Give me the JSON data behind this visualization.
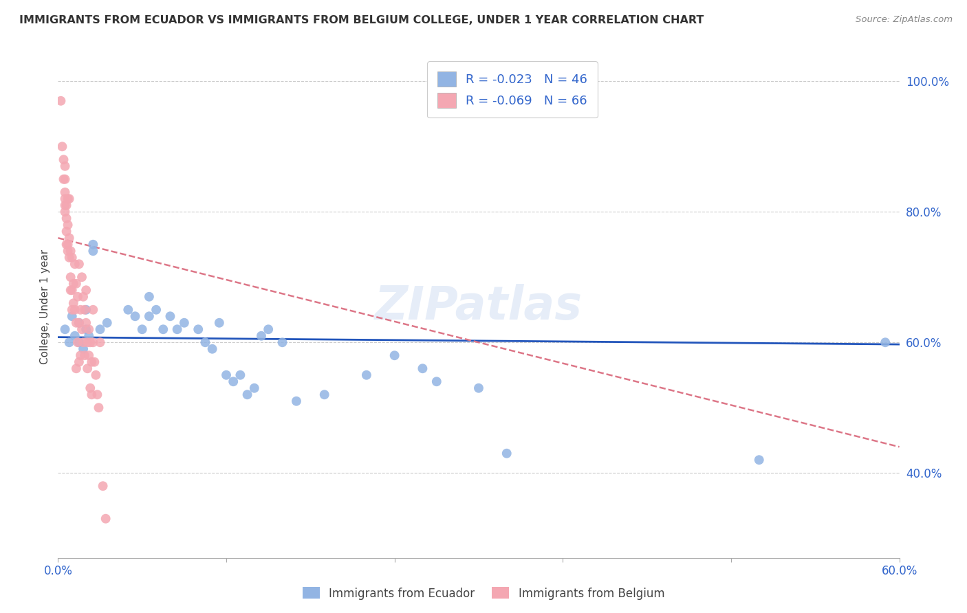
{
  "title": "IMMIGRANTS FROM ECUADOR VS IMMIGRANTS FROM BELGIUM COLLEGE, UNDER 1 YEAR CORRELATION CHART",
  "source": "Source: ZipAtlas.com",
  "ylabel": "College, Under 1 year",
  "xlim": [
    0.0,
    0.6
  ],
  "ylim": [
    0.27,
    1.04
  ],
  "xticks": [
    0.0,
    0.12,
    0.24,
    0.36,
    0.48,
    0.6
  ],
  "xticklabels": [
    "0.0%",
    "",
    "",
    "",
    "",
    "60.0%"
  ],
  "yticks": [
    0.4,
    0.6,
    0.8,
    1.0
  ],
  "yticklabels": [
    "40.0%",
    "60.0%",
    "80.0%",
    "100.0%"
  ],
  "legend_line1": "R = -0.023   N = 46",
  "legend_line2": "R = -0.069   N = 66",
  "legend_label1": "Immigrants from Ecuador",
  "legend_label2": "Immigrants from Belgium",
  "color_ecuador": "#92b4e3",
  "color_belgium": "#f4a7b2",
  "color_line_ecuador": "#2255bb",
  "color_line_belgium": "#dd7788",
  "watermark": "ZIPatlas",
  "ec_line_x0": 0.0,
  "ec_line_y0": 0.608,
  "ec_line_x1": 0.6,
  "ec_line_y1": 0.597,
  "be_line_x0": 0.0,
  "be_line_y0": 0.76,
  "be_line_x1": 0.6,
  "be_line_y1": 0.44,
  "ecuador_x": [
    0.005,
    0.008,
    0.01,
    0.012,
    0.015,
    0.015,
    0.018,
    0.02,
    0.02,
    0.022,
    0.025,
    0.025,
    0.03,
    0.035,
    0.05,
    0.055,
    0.06,
    0.065,
    0.065,
    0.07,
    0.075,
    0.08,
    0.085,
    0.09,
    0.1,
    0.105,
    0.11,
    0.115,
    0.12,
    0.125,
    0.13,
    0.135,
    0.14,
    0.145,
    0.15,
    0.16,
    0.17,
    0.19,
    0.22,
    0.24,
    0.26,
    0.27,
    0.3,
    0.32,
    0.5,
    0.59
  ],
  "ecuador_y": [
    0.62,
    0.6,
    0.64,
    0.61,
    0.63,
    0.6,
    0.59,
    0.62,
    0.65,
    0.61,
    0.74,
    0.75,
    0.62,
    0.63,
    0.65,
    0.64,
    0.62,
    0.64,
    0.67,
    0.65,
    0.62,
    0.64,
    0.62,
    0.63,
    0.62,
    0.6,
    0.59,
    0.63,
    0.55,
    0.54,
    0.55,
    0.52,
    0.53,
    0.61,
    0.62,
    0.6,
    0.51,
    0.52,
    0.55,
    0.58,
    0.56,
    0.54,
    0.53,
    0.43,
    0.42,
    0.6
  ],
  "belgium_x": [
    0.002,
    0.003,
    0.004,
    0.004,
    0.005,
    0.005,
    0.005,
    0.005,
    0.005,
    0.005,
    0.006,
    0.006,
    0.006,
    0.006,
    0.007,
    0.007,
    0.007,
    0.007,
    0.008,
    0.008,
    0.008,
    0.009,
    0.009,
    0.009,
    0.01,
    0.01,
    0.01,
    0.011,
    0.011,
    0.012,
    0.012,
    0.013,
    0.013,
    0.013,
    0.014,
    0.014,
    0.015,
    0.015,
    0.015,
    0.016,
    0.016,
    0.017,
    0.017,
    0.018,
    0.018,
    0.019,
    0.019,
    0.02,
    0.02,
    0.021,
    0.021,
    0.022,
    0.022,
    0.023,
    0.023,
    0.024,
    0.024,
    0.025,
    0.025,
    0.026,
    0.027,
    0.028,
    0.029,
    0.03,
    0.032,
    0.034
  ],
  "belgium_y": [
    0.97,
    0.9,
    0.88,
    0.85,
    0.87,
    0.85,
    0.83,
    0.81,
    0.82,
    0.8,
    0.81,
    0.79,
    0.77,
    0.75,
    0.82,
    0.78,
    0.75,
    0.74,
    0.82,
    0.76,
    0.73,
    0.74,
    0.7,
    0.68,
    0.73,
    0.68,
    0.65,
    0.69,
    0.66,
    0.72,
    0.65,
    0.69,
    0.63,
    0.56,
    0.67,
    0.6,
    0.72,
    0.63,
    0.57,
    0.65,
    0.58,
    0.7,
    0.62,
    0.67,
    0.6,
    0.65,
    0.58,
    0.68,
    0.63,
    0.6,
    0.56,
    0.62,
    0.58,
    0.6,
    0.53,
    0.57,
    0.52,
    0.65,
    0.6,
    0.57,
    0.55,
    0.52,
    0.5,
    0.6,
    0.38,
    0.33
  ]
}
